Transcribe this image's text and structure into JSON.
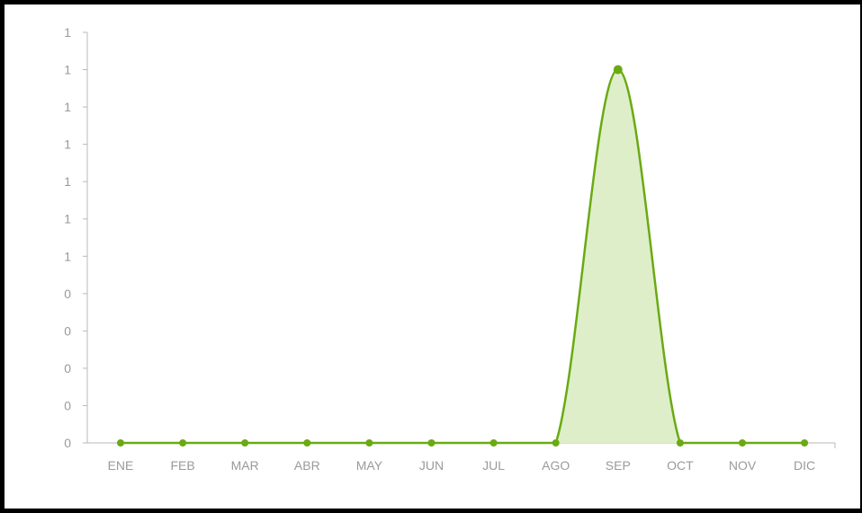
{
  "chart_data": {
    "type": "area",
    "categories": [
      "ENE",
      "FEB",
      "MAR",
      "ABR",
      "MAY",
      "JUN",
      "JUL",
      "AGO",
      "SEP",
      "OCT",
      "NOV",
      "DIC"
    ],
    "series": [
      {
        "values": [
          0,
          0,
          0,
          0,
          0,
          0,
          0,
          0,
          1,
          0,
          0,
          0
        ]
      }
    ],
    "ylim": [
      0,
      1.1
    ],
    "y_ticks": [
      0,
      0.1,
      0.2,
      0.3,
      0.4,
      0.5,
      0.6,
      0.7,
      0.8,
      0.9,
      1.0,
      1.1
    ],
    "y_tick_labels": [
      "0",
      "0",
      "0",
      "0",
      "0",
      "1",
      "1",
      "1",
      "1",
      "1",
      "1",
      "1"
    ],
    "title": "",
    "xlabel": "",
    "ylabel": "",
    "grid": false,
    "legend": "none",
    "colors": {
      "line": "#6aaa12",
      "fill": "#deeec9",
      "axis": "#b8b8b8",
      "tick_text": "#9a9a9a"
    }
  }
}
